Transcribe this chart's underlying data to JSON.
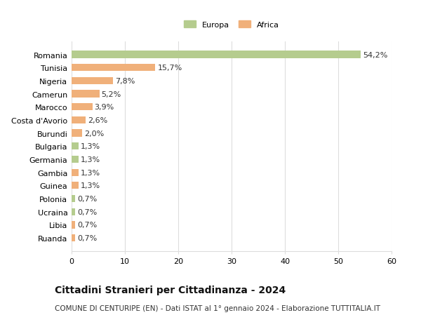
{
  "categories": [
    "Romania",
    "Tunisia",
    "Nigeria",
    "Camerun",
    "Marocco",
    "Costa d'Avorio",
    "Burundi",
    "Bulgaria",
    "Germania",
    "Gambia",
    "Guinea",
    "Polonia",
    "Ucraina",
    "Libia",
    "Ruanda"
  ],
  "values": [
    54.2,
    15.7,
    7.8,
    5.2,
    3.9,
    2.6,
    2.0,
    1.3,
    1.3,
    1.3,
    1.3,
    0.7,
    0.7,
    0.7,
    0.7
  ],
  "labels": [
    "54,2%",
    "15,7%",
    "7,8%",
    "5,2%",
    "3,9%",
    "2,6%",
    "2,0%",
    "1,3%",
    "1,3%",
    "1,3%",
    "1,3%",
    "0,7%",
    "0,7%",
    "0,7%",
    "0,7%"
  ],
  "continents": [
    "Europa",
    "Africa",
    "Africa",
    "Africa",
    "Africa",
    "Africa",
    "Africa",
    "Europa",
    "Europa",
    "Africa",
    "Africa",
    "Europa",
    "Europa",
    "Africa",
    "Africa"
  ],
  "color_europa": "#b5cc8e",
  "color_africa": "#f0b07a",
  "bg_color": "#ffffff",
  "grid_color": "#dddddd",
  "title": "Cittadini Stranieri per Cittadinanza - 2024",
  "subtitle": "COMUNE DI CENTURIPE (EN) - Dati ISTAT al 1° gennaio 2024 - Elaborazione TUTTITALIA.IT",
  "xlim": [
    0,
    60
  ],
  "xticks": [
    0,
    10,
    20,
    30,
    40,
    50,
    60
  ],
  "legend_europa": "Europa",
  "legend_africa": "Africa",
  "title_fontsize": 10,
  "subtitle_fontsize": 7.5,
  "tick_fontsize": 8,
  "label_fontsize": 8
}
